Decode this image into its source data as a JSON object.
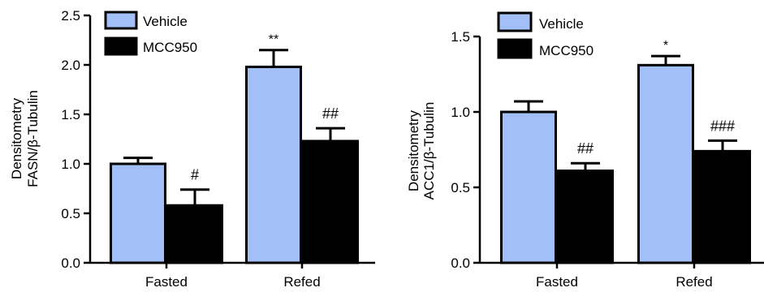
{
  "colors": {
    "vehicle": "#a3bff7",
    "mcc950": "#000000"
  },
  "chart_data": [
    {
      "type": "bar",
      "categories": [
        "Fasted",
        "Refed"
      ],
      "ylabel": [
        "Densitometry",
        "FASN/β-Tubulin"
      ],
      "ylim": [
        0,
        2.5
      ],
      "yticks": [
        "0.0",
        "0.5",
        "1.0",
        "1.5",
        "2.0",
        "2.5"
      ],
      "legend_position": "top-left",
      "series": [
        {
          "name": "Vehicle",
          "values": [
            1.0,
            1.98
          ],
          "errors": [
            0.06,
            0.17
          ],
          "annotations": [
            "",
            "**"
          ]
        },
        {
          "name": "MCC950",
          "values": [
            0.58,
            1.23
          ],
          "errors": [
            0.16,
            0.13
          ],
          "annotations": [
            "#",
            "##"
          ]
        }
      ]
    },
    {
      "type": "bar",
      "categories": [
        "Fasted",
        "Refed"
      ],
      "ylabel": [
        "Densitometry",
        "ACC1/β-Tubulin"
      ],
      "ylim": [
        0,
        1.5
      ],
      "yticks": [
        "0.0",
        "0.5",
        "1.0",
        "1.5"
      ],
      "legend_position": "top-left",
      "series": [
        {
          "name": "Vehicle",
          "values": [
            1.0,
            1.31
          ],
          "errors": [
            0.07,
            0.06
          ],
          "annotations": [
            "",
            "*"
          ]
        },
        {
          "name": "MCC950",
          "values": [
            0.61,
            0.74
          ],
          "errors": [
            0.05,
            0.07
          ],
          "annotations": [
            "##",
            "###"
          ]
        }
      ]
    }
  ]
}
